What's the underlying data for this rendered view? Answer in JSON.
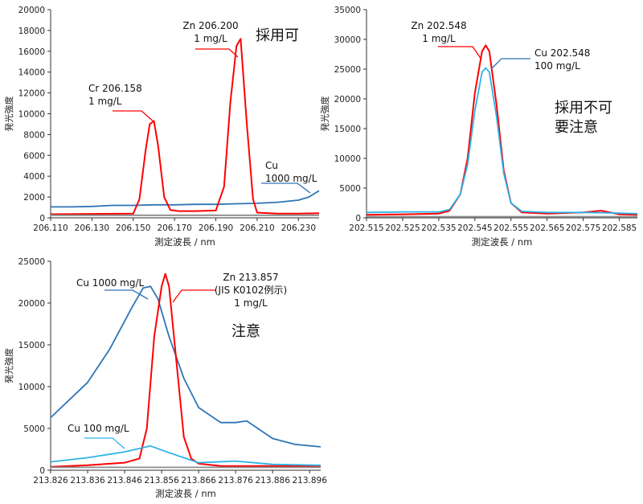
{
  "chart_data": [
    {
      "type": "line",
      "xlabel": "測定波長 / nm",
      "ylabel": "発光強度",
      "xlim": [
        206.11,
        206.24
      ],
      "ylim": [
        0,
        20000
      ],
      "xticks": [
        206.11,
        206.13,
        206.15,
        206.17,
        206.19,
        206.21,
        206.23
      ],
      "xtick_labels": [
        "206.110",
        "206.130",
        "206.150",
        "206.170",
        "206.190",
        "206.210",
        "206.230"
      ],
      "yticks": [
        0,
        2000,
        4000,
        6000,
        8000,
        10000,
        12000,
        14000,
        16000,
        18000,
        20000
      ],
      "ytick_labels": [
        "0",
        "2000",
        "4000",
        "6000",
        "8000",
        "10000",
        "12000",
        "14000",
        "16000",
        "18000",
        "20000"
      ],
      "grid": false,
      "series": [
        {
          "name": "",
          "color": "#2e75b6",
          "x": [
            206.11,
            206.12,
            206.13,
            206.14,
            206.15,
            206.16,
            206.17,
            206.18,
            206.19,
            206.2,
            206.21,
            206.22,
            206.23,
            206.235,
            206.24
          ],
          "y": [
            1050,
            1050,
            1100,
            1200,
            1200,
            1250,
            1250,
            1300,
            1300,
            1350,
            1400,
            1500,
            1700,
            2000,
            2600
          ]
        },
        {
          "name": "",
          "color": "#ff0000",
          "x": [
            206.11,
            206.13,
            206.15,
            206.153,
            206.156,
            206.158,
            206.16,
            206.162,
            206.165,
            206.168,
            206.172,
            206.18,
            206.19,
            206.194,
            206.197,
            206.2,
            206.202,
            206.205,
            206.208,
            206.21,
            206.22,
            206.23,
            206.24
          ],
          "y": [
            350,
            380,
            400,
            1800,
            6500,
            9000,
            9300,
            7000,
            2000,
            750,
            650,
            650,
            700,
            3000,
            11000,
            16500,
            17200,
            9000,
            1800,
            500,
            400,
            400,
            450
          ]
        },
        {
          "name": "",
          "color": "#8c8c8c",
          "x": [
            206.11,
            206.24
          ],
          "y": [
            250,
            250
          ]
        }
      ],
      "annotations": [
        {
          "lines": [
            "Cr  206.158",
            "1 mg/L"
          ]
        },
        {
          "lines": [
            "Zn  206.200",
            "1 mg/L"
          ]
        },
        {
          "lines": [
            "Cu",
            "1000 mg/L"
          ]
        },
        {
          "lines": [
            "採用可"
          ]
        }
      ]
    },
    {
      "type": "line",
      "xlabel": "測定波長 / nm",
      "ylabel": "発光強度",
      "xlim": [
        202.515,
        202.59
      ],
      "ylim": [
        0,
        35000
      ],
      "xticks": [
        202.515,
        202.525,
        202.535,
        202.545,
        202.555,
        202.565,
        202.575,
        202.585
      ],
      "xtick_labels": [
        "202.515",
        "202.525",
        "202.535",
        "202.545",
        "202.555",
        "202.565",
        "202.575",
        "202.585"
      ],
      "yticks": [
        0,
        5000,
        10000,
        15000,
        20000,
        25000,
        30000,
        35000
      ],
      "ytick_labels": [
        "0",
        "5000",
        "10000",
        "15000",
        "20000",
        "25000",
        "30000",
        "35000"
      ],
      "grid": false,
      "series": [
        {
          "name": "",
          "color": "#ff0000",
          "x": [
            202.515,
            202.525,
            202.535,
            202.538,
            202.541,
            202.543,
            202.545,
            202.547,
            202.548,
            202.549,
            202.551,
            202.553,
            202.555,
            202.558,
            202.565,
            202.575,
            202.58,
            202.585,
            202.59
          ],
          "y": [
            500,
            600,
            700,
            1200,
            4000,
            10000,
            21000,
            28000,
            29000,
            28000,
            19000,
            8000,
            2500,
            900,
            700,
            900,
            1200,
            600,
            500
          ]
        },
        {
          "name": "",
          "color": "#2db3e6",
          "x": [
            202.515,
            202.525,
            202.535,
            202.538,
            202.541,
            202.543,
            202.545,
            202.547,
            202.548,
            202.549,
            202.551,
            202.553,
            202.555,
            202.558,
            202.565,
            202.575,
            202.585,
            202.59
          ],
          "y": [
            900,
            1000,
            1000,
            1400,
            4000,
            9000,
            18000,
            24500,
            25200,
            24500,
            17000,
            7500,
            2500,
            1100,
            900,
            900,
            800,
            700
          ]
        },
        {
          "name": "",
          "color": "#8c8c8c",
          "x": [
            202.515,
            202.59
          ],
          "y": [
            200,
            200
          ]
        }
      ],
      "annotations": [
        {
          "lines": [
            "Zn  202.548",
            "1 mg/L"
          ]
        },
        {
          "lines": [
            "Cu 202.548",
            "100 mg/L"
          ]
        },
        {
          "lines": [
            "採用不可",
            "要注意"
          ]
        }
      ]
    },
    {
      "type": "line",
      "xlabel": "測定波長 / nm",
      "ylabel": "発光強度",
      "xlim": [
        213.826,
        213.899
      ],
      "ylim": [
        0,
        25000
      ],
      "xticks": [
        213.826,
        213.836,
        213.846,
        213.856,
        213.866,
        213.876,
        213.886,
        213.896
      ],
      "xtick_labels": [
        "213.826",
        "213.836",
        "213.846",
        "213.856",
        "213.866",
        "213.876",
        "213.886",
        "213.896"
      ],
      "yticks": [
        0,
        5000,
        10000,
        15000,
        20000,
        25000
      ],
      "ytick_labels": [
        "0",
        "5000",
        "10000",
        "15000",
        "20000",
        "25000"
      ],
      "grid": false,
      "series": [
        {
          "name": "",
          "color": "#2e75b6",
          "x": [
            213.826,
            213.836,
            213.842,
            213.848,
            213.851,
            213.853,
            213.855,
            213.858,
            213.862,
            213.866,
            213.872,
            213.876,
            213.879,
            213.882,
            213.886,
            213.892,
            213.899
          ],
          "y": [
            6300,
            10500,
            14500,
            19500,
            21800,
            22000,
            20500,
            16000,
            11000,
            7500,
            5700,
            5700,
            5900,
            5000,
            3800,
            3100,
            2800
          ]
        },
        {
          "name": "",
          "color": "#ff0000",
          "x": [
            213.826,
            213.836,
            213.846,
            213.85,
            213.852,
            213.854,
            213.856,
            213.857,
            213.858,
            213.86,
            213.862,
            213.864,
            213.866,
            213.872,
            213.886,
            213.899
          ],
          "y": [
            400,
            600,
            900,
            1400,
            5000,
            16000,
            22000,
            23500,
            22000,
            13000,
            4000,
            1400,
            800,
            500,
            500,
            500
          ]
        },
        {
          "name": "",
          "color": "#2db3e6",
          "x": [
            213.826,
            213.836,
            213.846,
            213.853,
            213.858,
            213.866,
            213.876,
            213.886,
            213.899
          ],
          "y": [
            1000,
            1500,
            2200,
            2900,
            2100,
            900,
            1100,
            700,
            600
          ]
        },
        {
          "name": "",
          "color": "#8c8c8c",
          "x": [
            213.826,
            213.899
          ],
          "y": [
            350,
            350
          ]
        }
      ],
      "annotations": [
        {
          "lines": [
            "Cu 1000 mg/L"
          ]
        },
        {
          "lines": [
            "Zn  213.857",
            "(JIS K0102例示)",
            "1 mg/L"
          ]
        },
        {
          "lines": [
            "Cu 100 mg/L"
          ]
        },
        {
          "lines": [
            "注意"
          ]
        }
      ]
    }
  ]
}
